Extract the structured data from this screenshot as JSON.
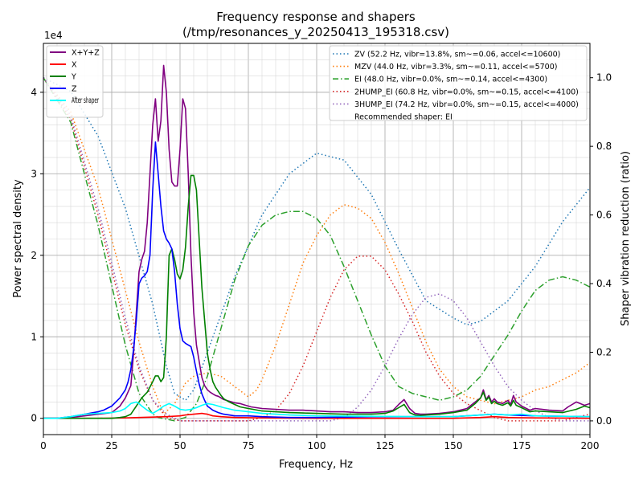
{
  "chart_data": {
    "type": "line",
    "title": "Frequency response and shapers",
    "subtitle": "(/tmp/resonances_y_20250413_195318.csv)",
    "xlabel": "Frequency, Hz",
    "ylabel": "Power spectral density",
    "y2label": "Shaper vibration reduction (ratio)",
    "y_offset_label": "1e4",
    "xlim": [
      0,
      200
    ],
    "ylim": [
      -2000,
      46000
    ],
    "y2lim": [
      -0.04,
      1.1
    ],
    "xticks": [
      0,
      25,
      50,
      75,
      100,
      125,
      150,
      175,
      200
    ],
    "xtick_labels": [
      "0",
      "25",
      "50",
      "75",
      "100",
      "125",
      "150",
      "175",
      "200"
    ],
    "yticks": [
      0,
      10000,
      20000,
      30000,
      40000
    ],
    "ytick_labels": [
      "0",
      "1",
      "2",
      "3",
      "4"
    ],
    "y2ticks": [
      0,
      0.2,
      0.4,
      0.6,
      0.8,
      1.0
    ],
    "y2tick_labels": [
      "0.0",
      "0.2",
      "0.4",
      "0.6",
      "0.8",
      "1.0"
    ],
    "grid": true,
    "legend_left": [
      {
        "name": "X+Y+Z",
        "color": "#800080"
      },
      {
        "name": "X",
        "color": "#ff0000"
      },
      {
        "name": "Y",
        "color": "#008000"
      },
      {
        "name": "Z",
        "color": "#0000ff"
      },
      {
        "name": "After shaper",
        "color": "#00ffff"
      }
    ],
    "legend_right": [
      {
        "name": "ZV (52.2 Hz, vibr=13.8%, sm~=0.06, accel<=10600)",
        "color": "#1f77b4",
        "style": "dotted"
      },
      {
        "name": "MZV (44.0 Hz, vibr=3.3%, sm~=0.11, accel<=5700)",
        "color": "#ff7f0e",
        "style": "dotted"
      },
      {
        "name": "EI (48.0 Hz, vibr=0.0%, sm~=0.14, accel<=4300)",
        "color": "#2ca02c",
        "style": "dashdot"
      },
      {
        "name": "2HUMP_EI (60.8 Hz, vibr=0.0%, sm~=0.15, accel<=4100)",
        "color": "#d62728",
        "style": "dotted"
      },
      {
        "name": "3HUMP_EI (74.2 Hz, vibr=0.0%, sm~=0.15, accel<=4000)",
        "color": "#9467bd",
        "style": "dotted"
      },
      {
        "name": "Recommended shaper: EI",
        "color": "",
        "style": "none"
      }
    ],
    "psd_series": [
      {
        "name": "X+Y+Z",
        "color": "#800080",
        "width": 1.6,
        "x": [
          0,
          5,
          10,
          15,
          20,
          25,
          28,
          30,
          32,
          33,
          34,
          35,
          36,
          37,
          38,
          39,
          40,
          41,
          42,
          43,
          44,
          45,
          46,
          47,
          48,
          49,
          50,
          51,
          52,
          53,
          54,
          55,
          56,
          57,
          58,
          59,
          60,
          61,
          62,
          63,
          64,
          65,
          66,
          67,
          68,
          70,
          72,
          74,
          76,
          78,
          80,
          85,
          90,
          95,
          100,
          105,
          110,
          115,
          120,
          125,
          128,
          130,
          132,
          134,
          136,
          138,
          140,
          145,
          150,
          155,
          158,
          160,
          161,
          162,
          163,
          164,
          165,
          166,
          168,
          170,
          171,
          172,
          173,
          175,
          178,
          180,
          185,
          190,
          192,
          195,
          198,
          200
        ],
        "y": [
          0,
          0,
          100,
          300,
          500,
          700,
          1500,
          2500,
          4000,
          8000,
          13000,
          18000,
          19500,
          20500,
          24000,
          30000,
          36000,
          39200,
          34000,
          36500,
          43300,
          40000,
          33000,
          29000,
          28500,
          28500,
          33000,
          39200,
          38000,
          30000,
          20000,
          13000,
          9000,
          7000,
          5000,
          4000,
          3500,
          3200,
          3000,
          2800,
          2700,
          2500,
          2300,
          2200,
          2100,
          1900,
          1800,
          1600,
          1400,
          1300,
          1200,
          1100,
          1000,
          1000,
          900,
          800,
          800,
          700,
          700,
          800,
          1000,
          1700,
          2300,
          1200,
          600,
          500,
          500,
          600,
          800,
          1200,
          2000,
          2500,
          3500,
          2300,
          2800,
          2000,
          2400,
          2000,
          1800,
          2200,
          1700,
          2800,
          2000,
          1500,
          1000,
          1200,
          1000,
          900,
          1400,
          2000,
          1600,
          1800
        ]
      },
      {
        "name": "X",
        "color": "#ff0000",
        "width": 1.6,
        "x": [
          0,
          10,
          20,
          30,
          35,
          40,
          45,
          50,
          52,
          55,
          58,
          60,
          62,
          65,
          70,
          80,
          100,
          150,
          160,
          165,
          170,
          180,
          200
        ],
        "y": [
          0,
          0,
          0,
          50,
          100,
          150,
          200,
          300,
          400,
          500,
          600,
          500,
          300,
          200,
          100,
          50,
          0,
          0,
          100,
          200,
          100,
          50,
          0
        ]
      },
      {
        "name": "Y",
        "color": "#008000",
        "width": 1.6,
        "x": [
          0,
          5,
          10,
          15,
          20,
          25,
          28,
          30,
          32,
          34,
          36,
          38,
          40,
          41,
          42,
          43,
          44,
          45,
          46,
          47,
          48,
          49,
          50,
          51,
          52,
          53,
          54,
          55,
          56,
          57,
          58,
          59,
          60,
          61,
          62,
          63,
          64,
          65,
          66,
          68,
          70,
          72,
          75,
          80,
          85,
          90,
          95,
          100,
          110,
          120,
          125,
          128,
          130,
          132,
          134,
          136,
          138,
          140,
          145,
          150,
          155,
          158,
          160,
          161,
          162,
          163,
          164,
          165,
          166,
          168,
          170,
          171,
          172,
          173,
          175,
          178,
          180,
          185,
          190,
          195,
          198,
          200
        ],
        "y": [
          0,
          0,
          0,
          0,
          0,
          0,
          100,
          200,
          500,
          1500,
          2500,
          3200,
          4500,
          5200,
          5200,
          4500,
          5000,
          10000,
          20000,
          20800,
          19500,
          17700,
          17100,
          18200,
          21000,
          26000,
          29800,
          29800,
          28000,
          22000,
          16000,
          12000,
          8000,
          6000,
          4500,
          3800,
          3300,
          2800,
          2400,
          2000,
          1700,
          1400,
          1200,
          900,
          800,
          700,
          650,
          600,
          500,
          500,
          600,
          900,
          1300,
          1700,
          700,
          400,
          350,
          400,
          500,
          700,
          1000,
          1800,
          2500,
          3200,
          2200,
          2600,
          1800,
          2100,
          1800,
          1600,
          1900,
          1500,
          2200,
          1600,
          1300,
          800,
          900,
          800,
          700,
          1100,
          1500,
          1300
        ]
      },
      {
        "name": "Z",
        "color": "#0000ff",
        "width": 1.6,
        "x": [
          0,
          5,
          10,
          15,
          20,
          22,
          25,
          28,
          30,
          31,
          32,
          33,
          34,
          35,
          36,
          37,
          38,
          39,
          40,
          41,
          42,
          43,
          44,
          45,
          46,
          47,
          48,
          49,
          50,
          51,
          52,
          53,
          54,
          55,
          56,
          57,
          58,
          59,
          60,
          62,
          64,
          66,
          68,
          70,
          75,
          80,
          90,
          100,
          120,
          150,
          160,
          165,
          170,
          180,
          200
        ],
        "y": [
          0,
          0,
          200,
          500,
          800,
          1000,
          1500,
          2500,
          3500,
          4500,
          6000,
          8500,
          12000,
          16500,
          17200,
          17500,
          18000,
          20000,
          28000,
          33900,
          30000,
          26000,
          23000,
          22000,
          21500,
          20800,
          18000,
          14000,
          11000,
          9500,
          9200,
          9000,
          8800,
          7500,
          5800,
          4200,
          3000,
          2200,
          1500,
          1000,
          700,
          500,
          400,
          300,
          300,
          200,
          100,
          100,
          200,
          200,
          400,
          500,
          400,
          300,
          200
        ]
      },
      {
        "name": "After shaper",
        "color": "#00ffff",
        "width": 1.6,
        "x": [
          0,
          5,
          10,
          15,
          20,
          25,
          28,
          30,
          32,
          34,
          35,
          36,
          38,
          40,
          42,
          44,
          46,
          48,
          50,
          52,
          54,
          56,
          58,
          60,
          62,
          64,
          66,
          70,
          75,
          80,
          90,
          100,
          120,
          140,
          150,
          160,
          165,
          170,
          175,
          180,
          200
        ],
        "y": [
          0,
          0,
          200,
          500,
          600,
          700,
          900,
          1200,
          1800,
          2000,
          1800,
          1500,
          1000,
          600,
          1000,
          1500,
          1800,
          1500,
          1100,
          1000,
          1100,
          1300,
          1600,
          1800,
          1700,
          1500,
          1300,
          1000,
          800,
          600,
          400,
          300,
          250,
          200,
          200,
          400,
          500,
          400,
          500,
          300,
          200
        ]
      }
    ],
    "shaper_series": [
      {
        "name": "ZV",
        "color": "#1f77b4",
        "dash": "1.5,3",
        "x": [
          0,
          10,
          20,
          30,
          40,
          45,
          48,
          52,
          55,
          60,
          70,
          80,
          90,
          100,
          110,
          120,
          130,
          140,
          150,
          155,
          160,
          170,
          180,
          190,
          200
        ],
        "y": [
          1.0,
          0.96,
          0.83,
          0.62,
          0.34,
          0.16,
          0.08,
          0.06,
          0.09,
          0.2,
          0.42,
          0.6,
          0.72,
          0.78,
          0.76,
          0.66,
          0.5,
          0.35,
          0.3,
          0.28,
          0.29,
          0.35,
          0.45,
          0.58,
          0.68
        ]
      },
      {
        "name": "MZV",
        "color": "#ff7f0e",
        "dash": "1.5,3",
        "x": [
          0,
          10,
          20,
          30,
          35,
          40,
          44,
          48,
          52,
          55,
          60,
          65,
          70,
          75,
          78,
          80,
          85,
          90,
          95,
          100,
          105,
          110,
          115,
          120,
          125,
          130,
          135,
          140,
          145,
          150,
          155,
          160,
          165,
          170,
          175,
          180,
          185,
          190,
          195,
          200
        ],
        "y": [
          1.0,
          0.9,
          0.68,
          0.38,
          0.23,
          0.1,
          0.02,
          0.05,
          0.11,
          0.13,
          0.14,
          0.13,
          0.1,
          0.07,
          0.09,
          0.12,
          0.22,
          0.34,
          0.46,
          0.54,
          0.6,
          0.63,
          0.62,
          0.59,
          0.52,
          0.43,
          0.33,
          0.23,
          0.15,
          0.1,
          0.07,
          0.06,
          0.05,
          0.06,
          0.07,
          0.09,
          0.1,
          0.12,
          0.14,
          0.17
        ]
      },
      {
        "name": "EI",
        "color": "#2ca02c",
        "dash": "8,3,1.5,3",
        "x": [
          0,
          10,
          20,
          30,
          35,
          40,
          42,
          45,
          48,
          52,
          56,
          60,
          65,
          70,
          75,
          80,
          85,
          90,
          95,
          100,
          105,
          110,
          115,
          120,
          125,
          130,
          135,
          140,
          145,
          150,
          155,
          160,
          165,
          170,
          175,
          180,
          185,
          190,
          195,
          200
        ],
        "y": [
          1.0,
          0.87,
          0.57,
          0.22,
          0.08,
          0.02,
          0.01,
          0.005,
          0.0,
          0.01,
          0.05,
          0.13,
          0.27,
          0.41,
          0.51,
          0.57,
          0.6,
          0.61,
          0.61,
          0.59,
          0.54,
          0.45,
          0.35,
          0.25,
          0.16,
          0.1,
          0.08,
          0.07,
          0.06,
          0.07,
          0.09,
          0.13,
          0.19,
          0.25,
          0.32,
          0.38,
          0.41,
          0.42,
          0.41,
          0.39
        ]
      },
      {
        "name": "2HUMP_EI",
        "color": "#d62728",
        "dash": "1.5,3",
        "x": [
          0,
          10,
          20,
          30,
          35,
          40,
          45,
          50,
          55,
          60,
          65,
          70,
          75,
          80,
          85,
          90,
          95,
          100,
          105,
          110,
          115,
          120,
          125,
          130,
          135,
          140,
          145,
          150,
          155,
          160,
          165,
          170,
          175,
          180,
          185,
          190,
          195,
          200
        ],
        "y": [
          1.0,
          0.88,
          0.6,
          0.28,
          0.15,
          0.06,
          0.01,
          0.0,
          0.0,
          0.0,
          0.0,
          0.0,
          0.0,
          0.01,
          0.03,
          0.08,
          0.16,
          0.26,
          0.36,
          0.44,
          0.48,
          0.48,
          0.44,
          0.37,
          0.29,
          0.2,
          0.13,
          0.08,
          0.05,
          0.03,
          0.01,
          0.0,
          0.0,
          0.0,
          0.0,
          0.0,
          0.01,
          0.02
        ]
      },
      {
        "name": "3HUMP_EI",
        "color": "#9467bd",
        "dash": "1.5,3",
        "x": [
          0,
          10,
          20,
          30,
          35,
          40,
          45,
          50,
          60,
          70,
          80,
          90,
          100,
          105,
          110,
          115,
          120,
          125,
          130,
          135,
          140,
          145,
          150,
          155,
          160,
          165,
          170,
          175,
          180,
          185,
          190,
          195,
          200
        ],
        "y": [
          1.0,
          0.89,
          0.62,
          0.3,
          0.16,
          0.06,
          0.02,
          0.0,
          0.0,
          0.0,
          0.0,
          0.0,
          0.0,
          0.0,
          0.01,
          0.04,
          0.09,
          0.16,
          0.24,
          0.31,
          0.36,
          0.37,
          0.35,
          0.3,
          0.23,
          0.16,
          0.1,
          0.06,
          0.03,
          0.01,
          0.0,
          0.0,
          0.0
        ]
      }
    ]
  }
}
